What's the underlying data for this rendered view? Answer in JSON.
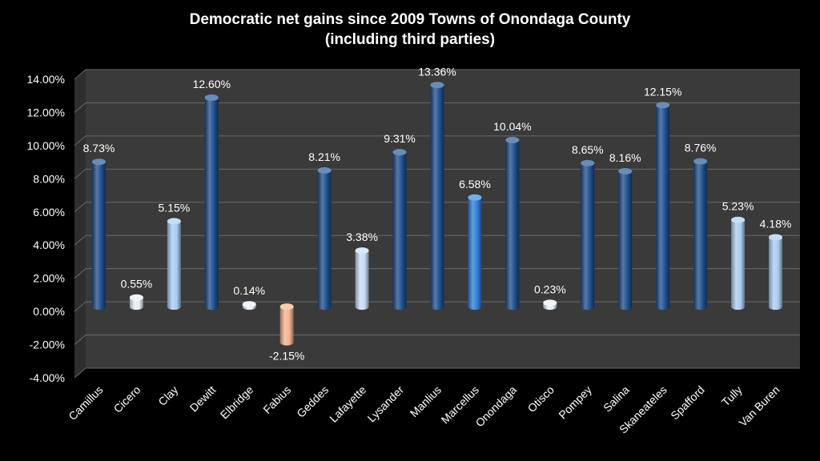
{
  "chart_data": {
    "type": "bar",
    "title_line1": "Democratic net gains since 2009 Towns of Onondaga County",
    "title_line2": "(including third parties)",
    "xlabel": "",
    "ylabel": "",
    "ylim": [
      -4,
      14
    ],
    "yticks": [
      "-4.00%",
      "-2.00%",
      "0.00%",
      "2.00%",
      "4.00%",
      "6.00%",
      "8.00%",
      "10.00%",
      "12.00%",
      "14.00%"
    ],
    "ytick_values": [
      -4,
      -2,
      0,
      2,
      4,
      6,
      8,
      10,
      12,
      14
    ],
    "grid": true,
    "categories": [
      "Camillus",
      "Cicero",
      "Clay",
      "Dewitt",
      "Elbridge",
      "Fabius",
      "Geddes",
      "Lafayette",
      "Lysander",
      "Manlius",
      "Marcellus",
      "Onondaga",
      "Otisco",
      "Pompey",
      "Salina",
      "Skaneateles",
      "Spafford",
      "Tully",
      "Van Buren"
    ],
    "values": [
      8.73,
      0.55,
      5.15,
      12.6,
      0.14,
      -2.15,
      8.21,
      3.38,
      9.31,
      13.36,
      6.58,
      10.04,
      0.23,
      8.65,
      8.16,
      12.15,
      8.76,
      5.23,
      4.18
    ],
    "labels": [
      "8.73%",
      "0.55%",
      "5.15%",
      "12.60%",
      "0.14%",
      "-2.15%",
      "8.21%",
      "3.38%",
      "9.31%",
      "13.36%",
      "6.58%",
      "10.04%",
      "0.23%",
      "8.65%",
      "8.16%",
      "12.15%",
      "8.76%",
      "5.23%",
      "4.18%"
    ],
    "bar_colors": [
      "#1d4e8c",
      "#e8eef5",
      "#a9cbf0",
      "#1d4e8c",
      "#e8eef5",
      "#f2b28f",
      "#1d4e8c",
      "#c6dcf3",
      "#1d4e8c",
      "#1d4e8c",
      "#2e7ed6",
      "#1d4e8c",
      "#e8eef5",
      "#1d4e8c",
      "#1d4e8c",
      "#1d4e8c",
      "#1d4e8c",
      "#a9cbf0",
      "#a9cbf0"
    ],
    "colors": {
      "background": "#000000",
      "plot_wall": "#3a3a3a",
      "gridline": "#6a6a6a",
      "text": "#ffffff"
    }
  }
}
